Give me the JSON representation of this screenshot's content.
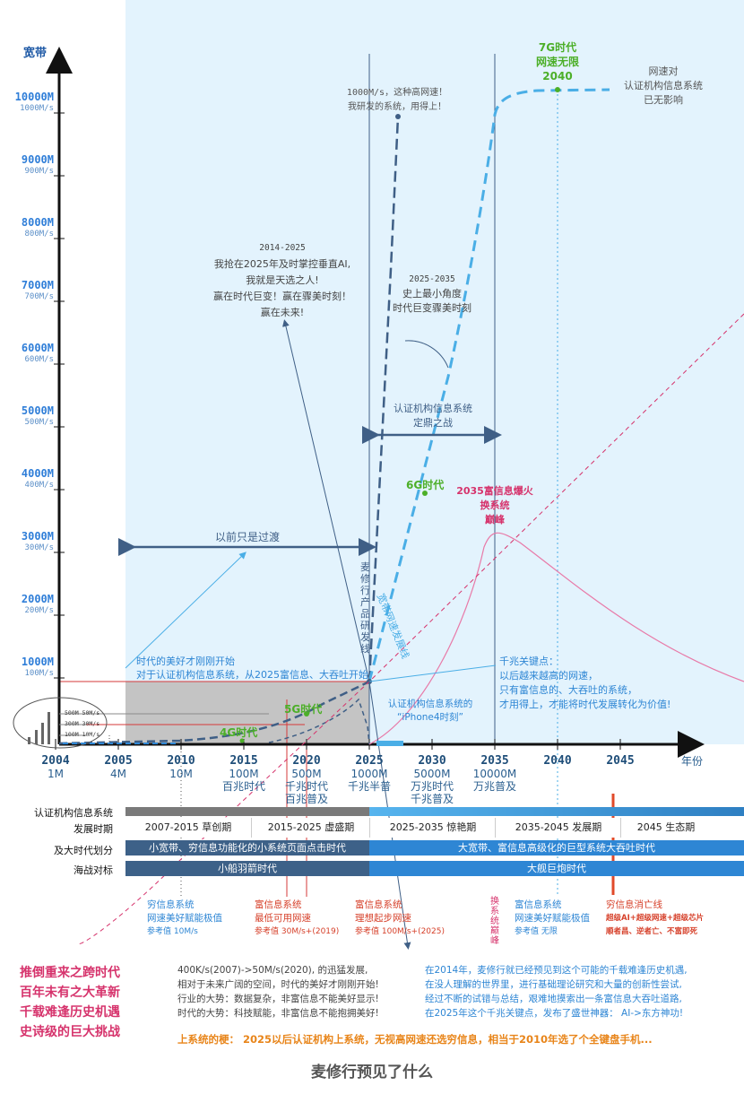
{
  "axis": {
    "y_label": "宽带",
    "x_label": "年份",
    "y_ticks": [
      {
        "main": "10000M",
        "sub": "1000M/s"
      },
      {
        "main": "9000M",
        "sub": "900M/s"
      },
      {
        "main": "8000M",
        "sub": "800M/s"
      },
      {
        "main": "7000M",
        "sub": "700M/s"
      },
      {
        "main": "6000M",
        "sub": "600M/s"
      },
      {
        "main": "5000M",
        "sub": "500M/s"
      },
      {
        "main": "4000M",
        "sub": "400M/s"
      },
      {
        "main": "3000M",
        "sub": "300M/s"
      },
      {
        "main": "2000M",
        "sub": "200M/s"
      },
      {
        "main": "1000M",
        "sub": "100M/s"
      }
    ],
    "x_ticks": [
      {
        "year": "2004",
        "l1": "1M",
        "l2": "",
        "l3": ""
      },
      {
        "year": "2005",
        "l1": "4M",
        "l2": "",
        "l3": ""
      },
      {
        "year": "2010",
        "l1": "10M",
        "l2": "",
        "l3": ""
      },
      {
        "year": "2015",
        "l1": "100M",
        "l2": "百兆时代",
        "l3": ""
      },
      {
        "year": "2020",
        "l1": "500M",
        "l2": "千兆时代",
        "l3": "百兆普及"
      },
      {
        "year": "2025",
        "l1": "1000M",
        "l2": "千兆半普",
        "l3": ""
      },
      {
        "year": "2030",
        "l1": "5000M",
        "l2": "万兆时代",
        "l3": "千兆普及"
      },
      {
        "year": "2035",
        "l1": "10000M",
        "l2": "万兆普及",
        "l3": ""
      },
      {
        "year": "2040",
        "l1": "",
        "l2": "",
        "l3": ""
      },
      {
        "year": "2045",
        "l1": "",
        "l2": "",
        "l3": ""
      }
    ],
    "inset_ticks": [
      "500M 50M/s",
      "300M 30M/s",
      "100M 10M/s"
    ]
  },
  "annotations": {
    "g7": [
      "7G时代",
      "网速无限",
      "2040"
    ],
    "no_effect": [
      "网速对",
      "认证机构信息系统",
      "已无影响"
    ],
    "high_speed": [
      "1000M/s，这种高网速！",
      "我研发的系统，用得上！"
    ],
    "seize": [
      "2014-2025",
      "我抢在2025年及时掌控垂直AI,",
      "我就是天选之人!",
      "赢在时代巨变！赢在骤美时刻！",
      "赢在未来!"
    ],
    "angle": [
      "2025-2035",
      "史上最小角度",
      "时代巨变骤美时刻"
    ],
    "decisive": [
      "认证机构信息系统",
      "定鼎之战"
    ],
    "g6": "6G时代",
    "g5": "5G时代",
    "g4": "4G时代",
    "peak": [
      "2035富信息爆火",
      "换系统",
      "巅峰"
    ],
    "transition": "以前只是过渡",
    "vertical_dev": "麦修行产品研发线",
    "bandwidth_curve": "宽带网速发展线",
    "beauty": [
      "时代的美好才刚刚开始",
      "对于认证机构信息系统，从2025富信息、大吞吐开始"
    ],
    "gigabit": [
      "千兆关键点：",
      "以后越来越高的网速，",
      "只有富信息的、大吞吐的系统，",
      "才用得上，才能将时代发展转化为价值!"
    ],
    "iphone4": [
      "认证机构信息系统的",
      "“iPhone4时刻”"
    ]
  },
  "rows": {
    "label_system": "认证机构信息系统",
    "label_period": "发展时期",
    "label_era": "及大时代划分",
    "label_navy": "海战对标",
    "phases": [
      "2007-2015 草创期",
      "2015-2025 虚盛期",
      "2025-2035 惊艳期",
      "2035-2045 发展期",
      "2045 生态期"
    ],
    "era_left": "小宽带、穷信息功能化的小系统页面点击时代",
    "era_right": "大宽带、富信息高级化的巨型系统大吞吐时代",
    "navy_left": "小船羽箭时代",
    "navy_right": "大舰巨炮时代"
  },
  "notes": {
    "poor": [
      "穷信息系统",
      "网速美好赋能极值",
      "参考值 10M/s"
    ],
    "rich_min": [
      "富信息系统",
      "最低可用网速",
      "参考值 30M/s+(2019)"
    ],
    "rich_ideal": [
      "富信息系统",
      "理想起步网速",
      "参考值 100M/s+(2025)"
    ],
    "swap_peak": "换系统巅峰",
    "rich_max": [
      "富信息系统",
      "网速美好赋能极值",
      "参考值 无限"
    ],
    "poor_end": [
      "穷信息消亡线",
      "超级AI+超级网速+超级芯片",
      "顺者昌、逆者亡、不富即死"
    ]
  },
  "bottom": {
    "slogans": [
      "推倒重来之跨时代",
      "百年未有之大革新",
      "千载难逢历史机遇",
      "史诗级的巨大挑战"
    ],
    "mid": [
      "400K/s(2007)->50M/s(2020), 的迅猛发展,",
      "相对于未来广阔的空间，时代的美好才刚刚开始!",
      "行业的大势：数据复杂，非富信息不能美好显示!",
      "时代的大势：科技赋能，非富信息不能抱拥美好!"
    ],
    "right": [
      "在2014年，麦修行就已经预见到这个可能的千载难逢历史机遇,",
      "在没人理解的世界里，进行基础理论研究和大量的创新性尝试,",
      "经过不断的试错与总结，艰难地摸索出一条富信息大吞吐道路,",
      "在2025年这个千兆关键点，发布了盛世神器：  AI->东方神功!"
    ],
    "stalk": "上系统的梗： 2025以后认证机构上系统，无视高网速还选穷信息，相当于2010年选了个全键盘手机...",
    "title": "麦修行预见了什么"
  },
  "colors": {
    "bg": "#e3f3fd",
    "axis": "#111111",
    "dark_blue": "#3f5f86",
    "light_blue": "#4aaee6",
    "pink": "#d6336c",
    "green": "#4caf28",
    "bar_dark": "#3d6188",
    "bar_light": "#2e86d4"
  }
}
